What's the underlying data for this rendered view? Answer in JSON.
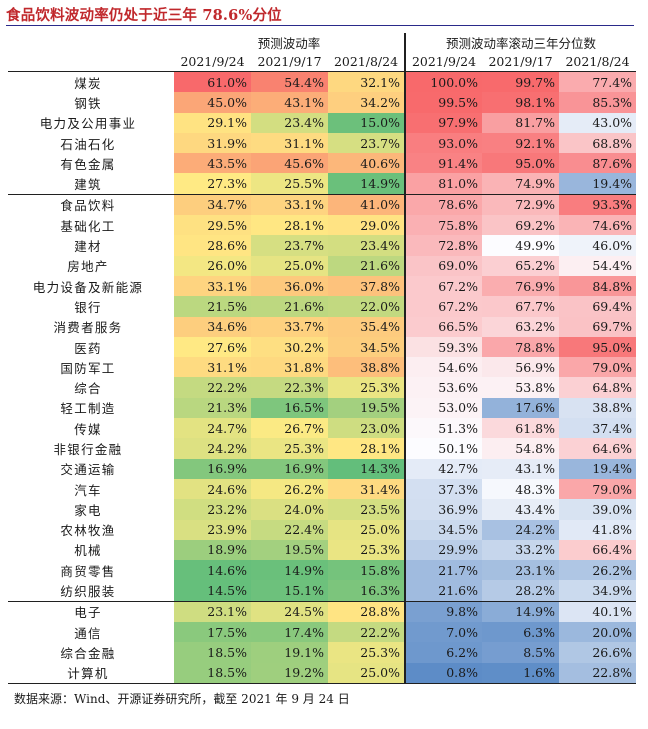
{
  "title": "食品饮料波动率仍处于近三年 78.6%分位",
  "header": {
    "group1": "预测波动率",
    "group2": "预测波动率滚动三年分位数",
    "dates": [
      "2021/9/24",
      "2021/9/17",
      "2021/8/24",
      "2021/9/24",
      "2021/9/17",
      "2021/8/24"
    ]
  },
  "rows": [
    {
      "name": "煤炭",
      "v": [
        "61.0%",
        "54.4%",
        "32.1%",
        "100.0%",
        "99.7%",
        "77.4%"
      ]
    },
    {
      "name": "钢铁",
      "v": [
        "45.0%",
        "43.1%",
        "34.2%",
        "99.5%",
        "98.1%",
        "85.3%"
      ]
    },
    {
      "name": "电力及公用事业",
      "v": [
        "29.1%",
        "23.4%",
        "15.0%",
        "97.9%",
        "81.7%",
        "43.0%"
      ]
    },
    {
      "name": "石油石化",
      "v": [
        "31.9%",
        "31.1%",
        "23.7%",
        "93.0%",
        "92.1%",
        "68.8%"
      ]
    },
    {
      "name": "有色金属",
      "v": [
        "43.5%",
        "45.6%",
        "40.6%",
        "91.4%",
        "95.0%",
        "87.6%"
      ]
    },
    {
      "name": "建筑",
      "v": [
        "27.3%",
        "25.5%",
        "14.9%",
        "81.0%",
        "74.9%",
        "19.4%"
      ]
    },
    {
      "name": "食品饮料",
      "v": [
        "34.7%",
        "33.1%",
        "41.0%",
        "78.6%",
        "72.9%",
        "93.3%"
      ]
    },
    {
      "name": "基础化工",
      "v": [
        "29.5%",
        "28.1%",
        "29.0%",
        "75.8%",
        "69.2%",
        "74.6%"
      ]
    },
    {
      "name": "建材",
      "v": [
        "28.6%",
        "23.7%",
        "23.4%",
        "72.8%",
        "49.9%",
        "46.0%"
      ]
    },
    {
      "name": "房地产",
      "v": [
        "26.0%",
        "25.0%",
        "21.6%",
        "69.0%",
        "65.2%",
        "54.4%"
      ]
    },
    {
      "name": "电力设备及新能源",
      "v": [
        "33.1%",
        "36.0%",
        "37.8%",
        "67.2%",
        "76.9%",
        "84.8%"
      ]
    },
    {
      "name": "银行",
      "v": [
        "21.5%",
        "21.6%",
        "22.0%",
        "67.2%",
        "67.7%",
        "69.4%"
      ]
    },
    {
      "name": "消费者服务",
      "v": [
        "34.6%",
        "33.7%",
        "35.4%",
        "66.5%",
        "63.2%",
        "69.7%"
      ]
    },
    {
      "name": "医药",
      "v": [
        "27.6%",
        "30.2%",
        "34.5%",
        "59.3%",
        "78.8%",
        "95.0%"
      ]
    },
    {
      "name": "国防军工",
      "v": [
        "31.1%",
        "31.8%",
        "38.8%",
        "54.6%",
        "56.9%",
        "79.0%"
      ]
    },
    {
      "name": "综合",
      "v": [
        "22.2%",
        "22.3%",
        "25.3%",
        "53.6%",
        "53.8%",
        "64.8%"
      ]
    },
    {
      "name": "轻工制造",
      "v": [
        "21.3%",
        "16.5%",
        "19.5%",
        "53.0%",
        "17.6%",
        "38.8%"
      ]
    },
    {
      "name": "传媒",
      "v": [
        "24.7%",
        "26.7%",
        "23.0%",
        "51.3%",
        "61.8%",
        "37.4%"
      ]
    },
    {
      "name": "非银行金融",
      "v": [
        "24.2%",
        "25.3%",
        "28.1%",
        "50.1%",
        "54.8%",
        "64.6%"
      ]
    },
    {
      "name": "交通运输",
      "v": [
        "16.9%",
        "16.9%",
        "14.3%",
        "42.7%",
        "43.1%",
        "19.4%"
      ]
    },
    {
      "name": "汽车",
      "v": [
        "24.6%",
        "26.2%",
        "31.4%",
        "37.3%",
        "48.3%",
        "79.0%"
      ]
    },
    {
      "name": "家电",
      "v": [
        "23.2%",
        "24.0%",
        "23.5%",
        "36.9%",
        "43.4%",
        "39.0%"
      ]
    },
    {
      "name": "农林牧渔",
      "v": [
        "23.9%",
        "22.4%",
        "25.0%",
        "34.5%",
        "24.2%",
        "41.8%"
      ]
    },
    {
      "name": "机械",
      "v": [
        "18.9%",
        "19.5%",
        "25.3%",
        "29.9%",
        "33.2%",
        "66.4%"
      ]
    },
    {
      "name": "商贸零售",
      "v": [
        "14.6%",
        "14.9%",
        "15.8%",
        "21.7%",
        "23.1%",
        "26.2%"
      ]
    },
    {
      "name": "纺织服装",
      "v": [
        "14.5%",
        "15.1%",
        "16.3%",
        "21.6%",
        "28.2%",
        "34.9%"
      ]
    },
    {
      "name": "电子",
      "v": [
        "23.1%",
        "24.5%",
        "28.8%",
        "9.8%",
        "14.9%",
        "40.1%"
      ]
    },
    {
      "name": "通信",
      "v": [
        "17.5%",
        "17.4%",
        "22.2%",
        "7.0%",
        "6.3%",
        "20.0%"
      ]
    },
    {
      "name": "综合金融",
      "v": [
        "18.5%",
        "19.1%",
        "25.3%",
        "6.2%",
        "8.5%",
        "26.6%"
      ]
    },
    {
      "name": "计算机",
      "v": [
        "18.5%",
        "19.2%",
        "25.0%",
        "0.8%",
        "1.6%",
        "22.8%"
      ]
    }
  ],
  "group_end_rows": [
    5,
    25,
    29
  ],
  "colors": {
    "vol_low": "#63be7b",
    "vol_mid": "#ffeb84",
    "vol_high": "#f8696b",
    "pct_low": "#5a8ac6",
    "pct_mid": "#fcfcff",
    "pct_high": "#f8696b"
  },
  "footer": "数据来源：Wind、开源证券研究所，截至 2021 年 9 月 24 日"
}
